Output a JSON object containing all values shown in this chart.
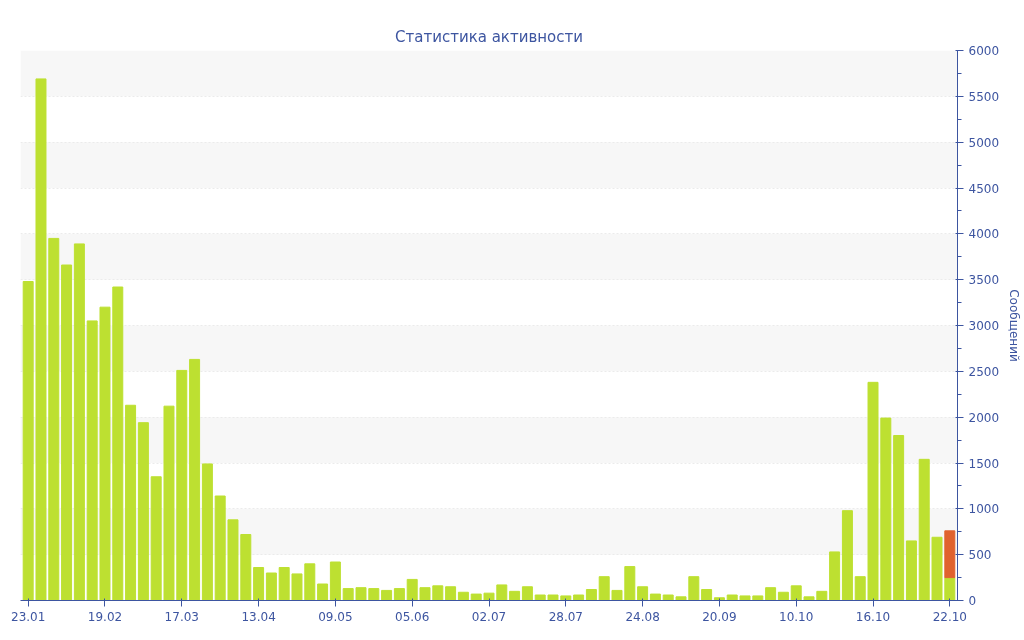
{
  "chart_data": {
    "type": "bar",
    "title": "Статистика активности",
    "ylabel": "Сообщений",
    "categories": [
      "23.01",
      null,
      null,
      null,
      null,
      null,
      "19.02",
      null,
      null,
      null,
      null,
      null,
      "17.03",
      null,
      null,
      null,
      null,
      null,
      "13.04",
      null,
      null,
      null,
      null,
      null,
      "09.05",
      null,
      null,
      null,
      null,
      null,
      "05.06",
      null,
      null,
      null,
      null,
      null,
      "02.07",
      null,
      null,
      null,
      null,
      null,
      "28.07",
      null,
      null,
      null,
      null,
      null,
      "24.08",
      null,
      null,
      null,
      null,
      null,
      "20.09",
      null,
      null,
      null,
      null,
      null,
      "10.10",
      null,
      null,
      null,
      null,
      null,
      "16.10",
      null,
      null,
      null,
      null,
      null,
      "22.10"
    ],
    "stacked": true,
    "series": [
      {
        "color": "#bde031",
        "values": [
          3480,
          5690,
          3950,
          3660,
          3890,
          3050,
          3200,
          3420,
          2130,
          1940,
          1350,
          2120,
          2510,
          2630,
          1490,
          1140,
          880,
          720,
          360,
          300,
          360,
          290,
          400,
          180,
          420,
          130,
          140,
          130,
          110,
          130,
          230,
          140,
          160,
          150,
          90,
          70,
          80,
          170,
          100,
          150,
          60,
          60,
          50,
          60,
          120,
          260,
          110,
          370,
          150,
          70,
          60,
          40,
          260,
          120,
          30,
          60,
          50,
          50,
          140,
          90,
          160,
          40,
          100,
          530,
          980,
          260,
          2380,
          1990,
          1800,
          650,
          1540,
          690,
          250
        ]
      },
      {
        "color": "#e0622e",
        "values": [
          null,
          null,
          null,
          null,
          null,
          null,
          null,
          null,
          null,
          null,
          null,
          null,
          null,
          null,
          null,
          null,
          null,
          null,
          null,
          null,
          null,
          null,
          null,
          null,
          null,
          null,
          null,
          null,
          null,
          null,
          null,
          null,
          null,
          null,
          null,
          null,
          null,
          null,
          null,
          null,
          null,
          null,
          null,
          null,
          null,
          null,
          null,
          null,
          null,
          null,
          null,
          null,
          null,
          null,
          null,
          null,
          null,
          null,
          null,
          null,
          null,
          null,
          null,
          null,
          null,
          null,
          null,
          null,
          null,
          null,
          null,
          null,
          510
        ]
      }
    ],
    "ylim": [
      0,
      6000
    ],
    "yticks": [
      0,
      500,
      1000,
      1500,
      2000,
      2500,
      3000,
      3500,
      4000,
      4500,
      5000,
      5500,
      6000
    ],
    "grid": "y"
  }
}
